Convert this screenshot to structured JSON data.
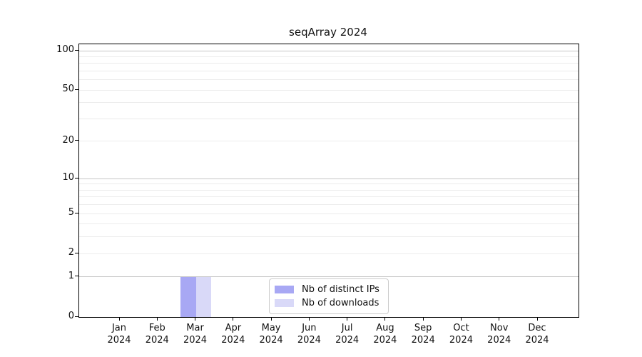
{
  "title": "seqArray 2024",
  "legend": {
    "position": "lower center",
    "items": [
      {
        "label": "Nb of distinct IPs",
        "color": "#a8a8f4"
      },
      {
        "label": "Nb of downloads",
        "color": "#d9d9f8"
      }
    ]
  },
  "chart_data": {
    "type": "bar",
    "title": "seqArray 2024",
    "categories": [
      "Jan 2024",
      "Feb 2024",
      "Mar 2024",
      "Apr 2024",
      "May 2024",
      "Jun 2024",
      "Jul 2024",
      "Aug 2024",
      "Sep 2024",
      "Oct 2024",
      "Nov 2024",
      "Dec 2024"
    ],
    "series": [
      {
        "name": "Nb of distinct IPs",
        "color": "#a8a8f4",
        "values": [
          0,
          0,
          1,
          0,
          0,
          0,
          0,
          0,
          0,
          0,
          0,
          0
        ]
      },
      {
        "name": "Nb of downloads",
        "color": "#d9d9f8",
        "values": [
          0,
          0,
          1,
          0,
          0,
          0,
          0,
          0,
          0,
          0,
          0,
          0
        ]
      }
    ],
    "xlabel": "",
    "ylabel": "",
    "yscale": "log1p",
    "ylim": [
      0,
      112
    ],
    "yticks": [
      0,
      1,
      2,
      5,
      10,
      20,
      50,
      100
    ],
    "major_gridlines": [
      1,
      10,
      100
    ],
    "minor_gridlines": [
      2,
      3,
      4,
      5,
      6,
      7,
      8,
      9,
      20,
      30,
      40,
      50,
      60,
      70,
      80,
      90
    ],
    "grid": true,
    "legend_position": "lower center"
  },
  "colors": {
    "spine": "#000000",
    "major_grid": "#c6c6c6",
    "minor_grid": "#ececec",
    "background": "#ffffff"
  }
}
